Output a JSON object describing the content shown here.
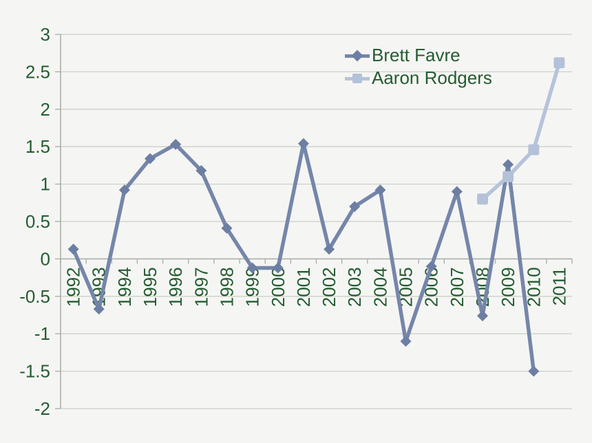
{
  "chart_data": {
    "type": "line",
    "title": "",
    "xlabel": "",
    "ylabel": "",
    "categories": [
      "1992",
      "1993",
      "1994",
      "1995",
      "1996",
      "1997",
      "1998",
      "1999",
      "2000",
      "2001",
      "2002",
      "2003",
      "2004",
      "2005",
      "2006",
      "2007",
      "2008",
      "2009",
      "2010",
      "2011"
    ],
    "series": [
      {
        "name": "Brett Favre",
        "marker": "diamond",
        "line_color": "#7586A9",
        "marker_color": "#6C7FA3",
        "values": [
          0.13,
          -0.67,
          0.92,
          1.34,
          1.53,
          1.18,
          0.41,
          -0.12,
          -0.12,
          1.54,
          0.13,
          0.7,
          0.92,
          -1.1,
          -0.1,
          0.9,
          -0.76,
          1.26,
          -1.5,
          null
        ]
      },
      {
        "name": "Aaron Rodgers",
        "marker": "square",
        "line_color": "#B6C3DA",
        "marker_color": "#B3C1D9",
        "values": [
          null,
          null,
          null,
          null,
          null,
          null,
          null,
          null,
          null,
          null,
          null,
          null,
          null,
          null,
          null,
          null,
          0.8,
          1.1,
          1.46,
          2.62
        ]
      }
    ],
    "ylim": [
      -2,
      3
    ],
    "y_ticks": [
      3,
      2.5,
      2,
      1.5,
      1,
      0.5,
      0,
      -0.5,
      -1,
      -1.5,
      -2
    ],
    "grid": true,
    "legend_position": "top-right-inside",
    "colors": {
      "text": "#245C30",
      "gridline": "#CBD1C6",
      "axis": "#A8ACA2",
      "background": "#F5F5F4"
    }
  },
  "legend": {
    "items": [
      {
        "label": "Brett Favre"
      },
      {
        "label": "Aaron Rodgers"
      }
    ]
  }
}
